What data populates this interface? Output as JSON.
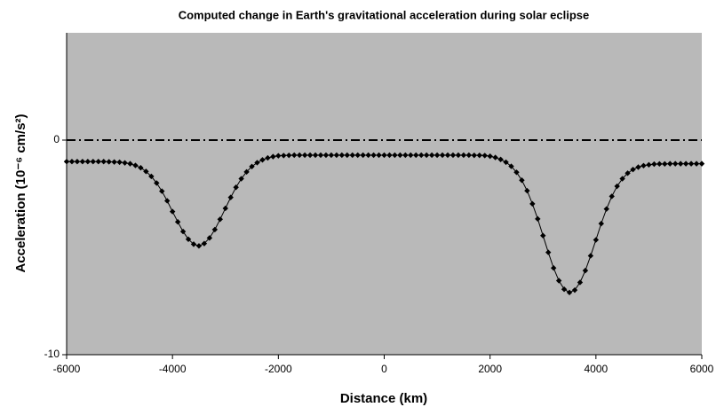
{
  "chart_data": {
    "type": "line",
    "title": "Computed change in Earth's gravitational acceleration during solar eclipse",
    "x_label": "Distance (km)",
    "y_label": "Acceleration (10⁻⁶ cm/s²)",
    "x": [
      -6000,
      -5900,
      -5800,
      -5700,
      -5600,
      -5500,
      -5400,
      -5300,
      -5200,
      -5100,
      -5000,
      -4900,
      -4800,
      -4700,
      -4600,
      -4500,
      -4400,
      -4300,
      -4200,
      -4100,
      -4000,
      -3900,
      -3800,
      -3700,
      -3600,
      -3500,
      -3400,
      -3300,
      -3200,
      -3100,
      -3000,
      -2900,
      -2800,
      -2700,
      -2600,
      -2500,
      -2400,
      -2300,
      -2200,
      -2100,
      -2000,
      -1900,
      -1800,
      -1700,
      -1600,
      -1500,
      -1400,
      -1300,
      -1200,
      -1100,
      -1000,
      -900,
      -800,
      -700,
      -600,
      -500,
      -400,
      -300,
      -200,
      -100,
      0,
      100,
      200,
      300,
      400,
      500,
      600,
      700,
      800,
      900,
      1000,
      1100,
      1200,
      1300,
      1400,
      1500,
      1600,
      1700,
      1800,
      1900,
      2000,
      2100,
      2200,
      2300,
      2400,
      2500,
      2600,
      2700,
      2800,
      2900,
      3000,
      3100,
      3200,
      3300,
      3400,
      3500,
      3600,
      3700,
      3800,
      3900,
      4000,
      4100,
      4200,
      4300,
      4400,
      4500,
      4600,
      4700,
      4800,
      4900,
      5000,
      5100,
      5200,
      5300,
      5400,
      5500,
      5600,
      5700,
      5800,
      5900,
      6000
    ],
    "series": [
      {
        "name": "Acceleration",
        "color": "#000000",
        "values": [
          -1.0,
          -1.0,
          -1.0,
          -1.0,
          -1.0,
          -1.0,
          -1.0,
          -1.0,
          -1.01,
          -1.02,
          -1.03,
          -1.06,
          -1.1,
          -1.18,
          -1.29,
          -1.46,
          -1.69,
          -2.0,
          -2.38,
          -2.83,
          -3.33,
          -3.81,
          -4.26,
          -4.62,
          -4.85,
          -4.93,
          -4.82,
          -4.56,
          -4.17,
          -3.69,
          -3.18,
          -2.67,
          -2.2,
          -1.8,
          -1.48,
          -1.23,
          -1.05,
          -0.92,
          -0.83,
          -0.77,
          -0.73,
          -0.72,
          -0.71,
          -0.7,
          -0.7,
          -0.7,
          -0.7,
          -0.7,
          -0.7,
          -0.7,
          -0.7,
          -0.7,
          -0.7,
          -0.7,
          -0.7,
          -0.7,
          -0.7,
          -0.7,
          -0.7,
          -0.7,
          -0.7,
          -0.7,
          -0.7,
          -0.7,
          -0.7,
          -0.7,
          -0.7,
          -0.7,
          -0.7,
          -0.7,
          -0.7,
          -0.7,
          -0.7,
          -0.7,
          -0.7,
          -0.7,
          -0.7,
          -0.71,
          -0.71,
          -0.72,
          -0.75,
          -0.81,
          -0.9,
          -1.03,
          -1.22,
          -1.5,
          -1.87,
          -2.36,
          -2.97,
          -3.67,
          -4.45,
          -5.23,
          -5.96,
          -6.55,
          -6.95,
          -7.1,
          -6.99,
          -6.63,
          -6.08,
          -5.39,
          -4.65,
          -3.89,
          -3.21,
          -2.62,
          -2.15,
          -1.8,
          -1.54,
          -1.37,
          -1.26,
          -1.19,
          -1.15,
          -1.12,
          -1.11,
          -1.11,
          -1.1,
          -1.1,
          -1.1,
          -1.1,
          -1.1,
          -1.1,
          -1.1
        ]
      }
    ],
    "xlim": [
      -6000,
      6000
    ],
    "xticks": [
      -6000,
      -4000,
      -2000,
      0,
      2000,
      4000,
      6000
    ],
    "ylim": [
      -10,
      5
    ],
    "yticks": [
      -10,
      0
    ],
    "reference_line": 0,
    "plot_background": "#b9b9b9",
    "grid": false,
    "markers": true
  }
}
